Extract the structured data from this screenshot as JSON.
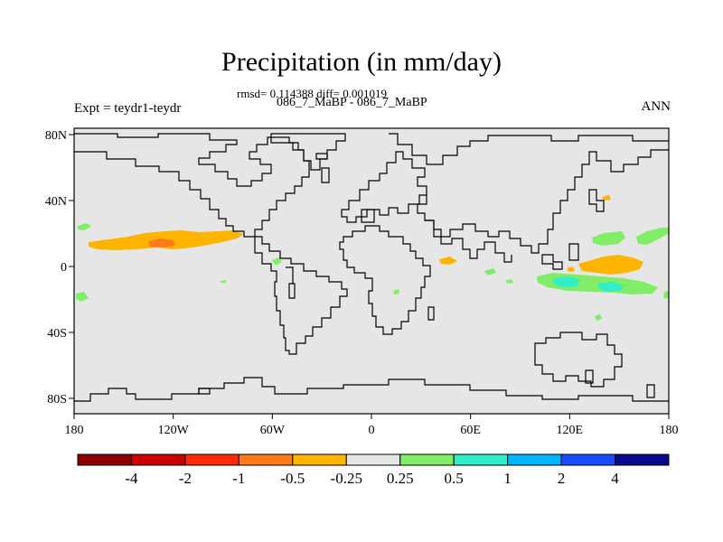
{
  "header": {
    "title": "Precipitation (in mm/day)",
    "stats": "rmsd= 0.114388 diff= 0.001019",
    "subtitle": "086_7_MaBP - 086_7_MaBP",
    "experiment": "Expt = teydr1-teydr",
    "season": "ANN"
  },
  "map": {
    "lon_ticks": [
      "180",
      "120W",
      "60W",
      "0",
      "60E",
      "120E",
      "180"
    ],
    "lat_ticks": [
      "80N",
      "40N",
      "0",
      "40S",
      "80S"
    ],
    "background_color": "#e6e6e6"
  },
  "colorbar": {
    "labels": [
      "-4",
      "-2",
      "-1",
      "-0.5",
      "-0.25",
      "0.25",
      "0.5",
      "1",
      "2",
      "4"
    ],
    "colors": [
      "#8b0000",
      "#cc0000",
      "#ff2a0a",
      "#ff7a1a",
      "#ffb400",
      "#e6e6e6",
      "#7fee66",
      "#30eec8",
      "#00b4ff",
      "#1a4cff",
      "#0a0a8c"
    ]
  },
  "anomalies": [
    {
      "name": "pacific-itcz-positive-diff",
      "level": "-0.5",
      "color": "#ffb400"
    },
    {
      "name": "pacific-itcz-core",
      "level": "-1",
      "color": "#ff7a1a"
    },
    {
      "name": "west-pacific-negative-diff",
      "level": "-0.5",
      "color": "#ffb400"
    },
    {
      "name": "west-pacific-positive-diff",
      "level": "0.5",
      "color": "#7fee66"
    },
    {
      "name": "west-pacific-core",
      "level": "1",
      "color": "#30eec8"
    }
  ]
}
